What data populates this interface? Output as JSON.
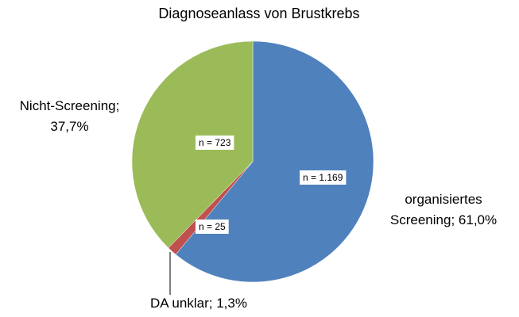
{
  "chart_data": {
    "type": "pie",
    "title": "Diagnoseanlass von Brustkrebs",
    "categories": [
      "organisiertes Screening;",
      "DA unklar;",
      "Nicht-Screening;"
    ],
    "values": [
      61.0,
      1.3,
      37.7
    ],
    "value_labels": [
      "61,0%",
      "1,3%",
      "37,7%"
    ],
    "counts": [
      1169,
      25,
      723
    ],
    "count_labels": [
      "n = 1.169",
      "n = 25",
      "n = 723"
    ],
    "colors": [
      "#4f81bd",
      "#c0504d",
      "#9bbb59"
    ]
  }
}
